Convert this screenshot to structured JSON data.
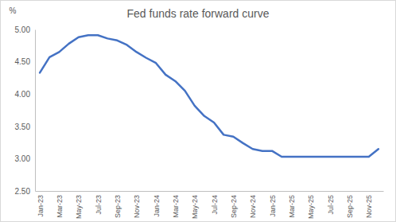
{
  "chart_data": {
    "type": "line",
    "title": "Fed funds rate forward curve",
    "ylabel": "%",
    "categories": [
      "Jan-23",
      null,
      "Mar-23",
      null,
      "May-23",
      null,
      "Jul-23",
      null,
      "Sep-23",
      null,
      "Nov-23",
      null,
      "Jan-24",
      null,
      "Mar-24",
      null,
      "May-24",
      null,
      "Jul-24",
      null,
      "Sep-24",
      null,
      "Nov-24",
      null,
      "Jan-25",
      null,
      "Mar-25",
      null,
      "May-25",
      null,
      "Jul-25",
      null,
      "Sep-25",
      null,
      "Nov-25",
      null
    ],
    "values": [
      4.33,
      4.57,
      4.65,
      4.78,
      4.88,
      4.91,
      4.91,
      4.86,
      4.83,
      4.76,
      4.65,
      4.56,
      4.48,
      4.3,
      4.2,
      4.05,
      3.82,
      3.66,
      3.56,
      3.37,
      3.34,
      3.24,
      3.15,
      3.12,
      3.12,
      3.03,
      3.03,
      3.03,
      3.03,
      3.03,
      3.03,
      3.03,
      3.03,
      3.03,
      3.03,
      3.15
    ],
    "color": "#4472c4",
    "ylim": [
      2.5,
      5.0
    ],
    "yticks": [
      {
        "value": 2.5,
        "label": "2.50"
      },
      {
        "value": 3.0,
        "label": "3.00"
      },
      {
        "value": 3.5,
        "label": "3.50"
      },
      {
        "value": 4.0,
        "label": "4.00"
      },
      {
        "value": 4.5,
        "label": "4.50"
      },
      {
        "value": 5.0,
        "label": "5.00"
      }
    ],
    "grid": false
  }
}
